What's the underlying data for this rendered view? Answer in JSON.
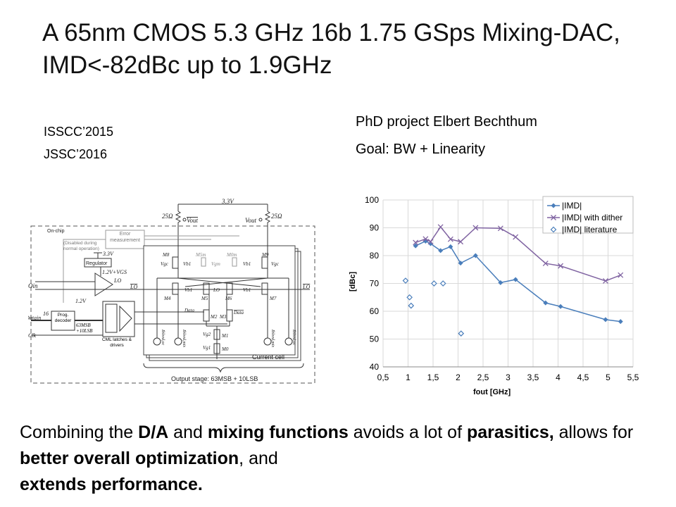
{
  "title": "A 65nm CMOS 5.3 GHz 16b 1.75 GSps Mixing-DAC, IMD<-82dBc up to 1.9GHz",
  "references": [
    "ISSCC’2015",
    "JSSC’2016"
  ],
  "project": {
    "line1": "PhD project Elbert Bechthum",
    "line2": "Goal: BW + Linearity"
  },
  "circuit": {
    "supply": "3.3V",
    "res_left": "25Ω",
    "res_right": "25Ω",
    "vout_bar": "Vout",
    "vout": "Vout",
    "on_chip": "On-chip",
    "error_block": "Error measurement",
    "disabled_note": "(Disabled during normal operation)",
    "regulator": "Regulator",
    "reg_supply": "3.3V",
    "reg_out": "1.2V+VGS",
    "lo_in": "LOin",
    "lo": "LO",
    "lo_bar": "LO",
    "v12": "1.2V",
    "data_in": "Datain",
    "bits16": "16",
    "decoder": "Prog. decoder",
    "bus": "63MSB +10LSB",
    "clk": "Clk",
    "latches": "CML latches & drivers",
    "transistors": [
      "M8",
      "M5m",
      "M0m",
      "M9",
      "M4",
      "M5",
      "M6",
      "M7",
      "M2",
      "M3",
      "M1",
      "M0"
    ],
    "vgc": "Vgc",
    "vb1": "Vb1",
    "vgm": "Vgm",
    "data": "Data",
    "data_bar": "Data",
    "vg2": "Vg2",
    "vg1": "Vg1",
    "ibleed_mix": "Ibleed,mix",
    "ibleed_oc": "Ibleed,oc",
    "current_cell": "Current cell",
    "output_stage": "Output stage: 63MSB + 10LSB"
  },
  "chart_data": {
    "type": "line",
    "title": "",
    "xlabel": "fout [GHz]",
    "ylabel": "[dBc]",
    "xlim": [
      0.5,
      5.5
    ],
    "ylim": [
      40,
      100
    ],
    "xticks": [
      "0,5",
      "1",
      "1,5",
      "2",
      "2,5",
      "3",
      "3,5",
      "4",
      "4,5",
      "5",
      "5,5"
    ],
    "yticks": [
      "40",
      "50",
      "60",
      "70",
      "80",
      "90",
      "100"
    ],
    "grid": true,
    "legend_position": "top-right",
    "series": [
      {
        "name": "|IMD|",
        "color": "#4a7ebb",
        "marker": "diamond-filled",
        "line": true,
        "x": [
          1.15,
          1.35,
          1.45,
          1.65,
          1.85,
          2.05,
          2.35,
          2.85,
          3.15,
          3.75,
          4.05,
          4.95,
          5.25
        ],
        "y": [
          83.5,
          85.2,
          84.3,
          81.8,
          83.2,
          77.3,
          80.0,
          70.3,
          71.4,
          63.0,
          61.7,
          57.0,
          56.3
        ]
      },
      {
        "name": "|IMD| with dither",
        "color": "#8064a2",
        "marker": "x",
        "line": true,
        "x": [
          1.15,
          1.35,
          1.45,
          1.65,
          1.85,
          2.05,
          2.35,
          2.85,
          3.15,
          3.75,
          4.05,
          4.95,
          5.25
        ],
        "y": [
          84.7,
          86.0,
          85.0,
          90.3,
          85.9,
          85.0,
          90.0,
          89.8,
          86.7,
          77.2,
          76.3,
          70.9,
          73.0
        ]
      },
      {
        "name": "|IMD| literature",
        "color": "#4a7ebb",
        "marker": "diamond-open",
        "line": false,
        "x": [
          0.95,
          1.03,
          1.06,
          1.52,
          1.7,
          2.06
        ],
        "y": [
          71,
          65,
          62,
          70,
          70,
          52
        ]
      }
    ]
  },
  "bottom": {
    "t1": "Combining the ",
    "b1": "D/A",
    "t2": " and ",
    "b2": "mixing functions",
    "t3": " avoids a lot of ",
    "b3": "parasitics,",
    "t4": " allows for ",
    "b4": "better overall optimization",
    "t5": ", and ",
    "b5": "extends performance."
  }
}
